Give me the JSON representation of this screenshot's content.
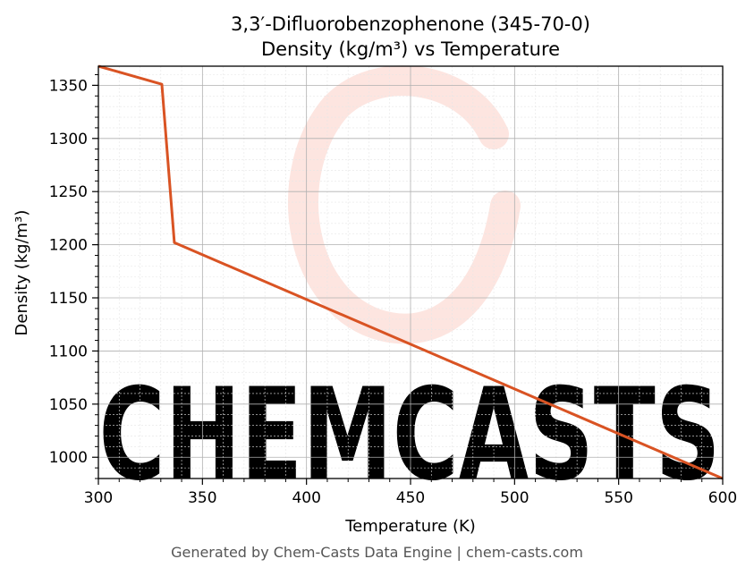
{
  "chart_data": {
    "type": "line",
    "title": "3,3′-Difluorobenzophenone (345-70-0)",
    "subtitle": "Density (kg/m³) vs Temperature",
    "xlabel": "Temperature (K)",
    "ylabel": "Density (kg/m³)",
    "xlim": [
      300,
      600
    ],
    "ylim": [
      980,
      1368
    ],
    "xticks": [
      300,
      350,
      400,
      450,
      500,
      550,
      600
    ],
    "yticks": [
      1000,
      1050,
      1100,
      1150,
      1200,
      1250,
      1300,
      1350
    ],
    "grid": true,
    "series": [
      {
        "color": "#d95323",
        "x": [
          300,
          330.5,
          336.5,
          600
        ],
        "y": [
          1368,
          1351,
          1202,
          980
        ]
      }
    ]
  },
  "watermark": {
    "text": "CHEMCASTS",
    "color": "#fde1da"
  },
  "footer": "Generated by Chem-Casts Data Engine | chem-casts.com"
}
